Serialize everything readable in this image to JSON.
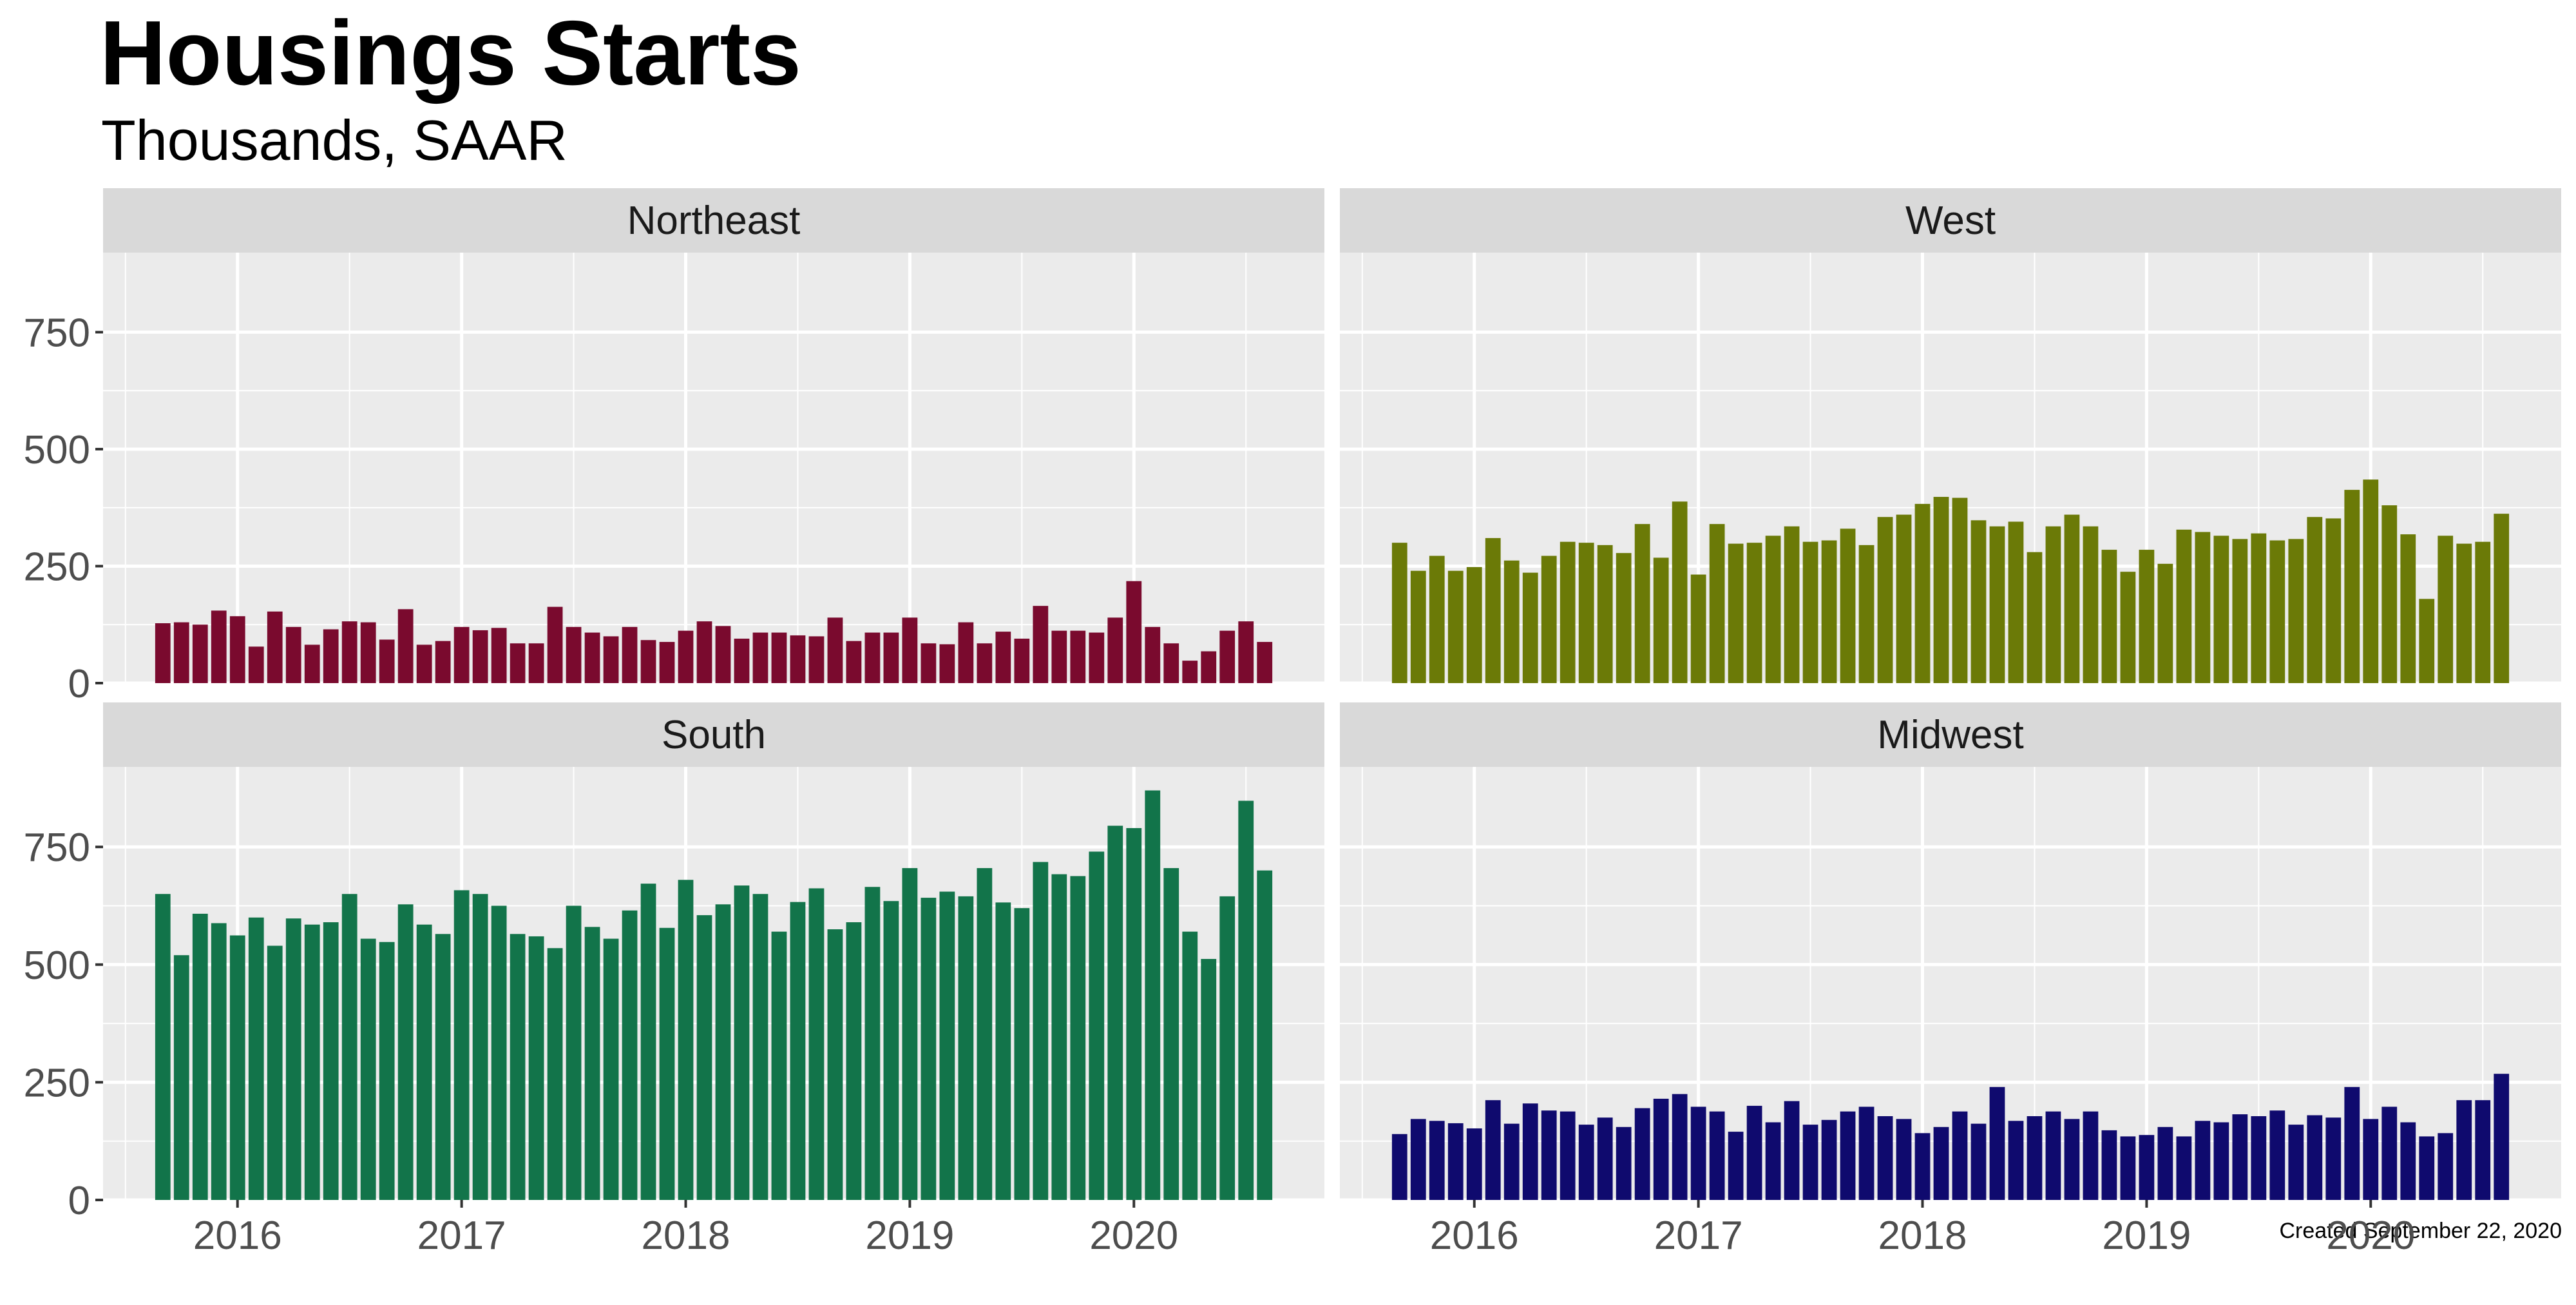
{
  "title": "Housings Starts",
  "subtitle": "Thousands, SAAR",
  "caption": "Created September 22, 2020",
  "chart_data": {
    "type": "bar",
    "layout": "facet-2x2",
    "x_start": "2015-09",
    "x_end": "2020-08",
    "x_ticks": [
      "2016",
      "2017",
      "2018",
      "2019",
      "2020"
    ],
    "y_ticks": [
      "0",
      "250",
      "500",
      "750"
    ],
    "ylim": [
      0,
      920
    ],
    "grid": true,
    "panels": [
      {
        "name": "Northeast",
        "color": "#7a0a2e",
        "values": [
          128,
          130,
          125,
          155,
          143,
          78,
          153,
          120,
          82,
          115,
          132,
          130,
          93,
          158,
          82,
          90,
          120,
          113,
          118,
          85,
          85,
          163,
          120,
          108,
          100,
          120,
          92,
          88,
          112,
          132,
          122,
          95,
          108,
          108,
          102,
          100,
          140,
          90,
          108,
          108,
          140,
          85,
          83,
          130,
          85,
          110,
          95,
          165,
          112,
          112,
          108,
          140,
          218,
          120,
          85,
          48,
          68,
          112,
          132,
          88
        ]
      },
      {
        "name": "West",
        "color": "#6b7a07",
        "values": [
          300,
          240,
          272,
          240,
          248,
          310,
          262,
          236,
          272,
          302,
          300,
          295,
          278,
          340,
          268,
          388,
          232,
          340,
          298,
          300,
          315,
          335,
          302,
          305,
          330,
          295,
          355,
          360,
          383,
          398,
          396,
          348,
          335,
          345,
          280,
          335,
          360,
          335,
          285,
          238,
          285,
          255,
          328,
          323,
          315,
          308,
          320,
          305,
          308,
          355,
          352,
          413,
          435,
          380,
          318,
          180,
          315,
          298,
          302,
          362
        ]
      },
      {
        "name": "South",
        "color": "#12744a",
        "values": [
          650,
          520,
          608,
          588,
          562,
          600,
          540,
          598,
          585,
          590,
          650,
          555,
          548,
          628,
          585,
          565,
          658,
          650,
          625,
          565,
          560,
          535,
          625,
          580,
          555,
          615,
          672,
          578,
          680,
          605,
          628,
          668,
          650,
          570,
          633,
          662,
          575,
          590,
          665,
          635,
          705,
          642,
          655,
          645,
          705,
          632,
          620,
          718,
          692,
          688,
          740,
          795,
          790,
          870,
          705,
          570,
          512,
          645,
          848,
          700
        ]
      },
      {
        "name": "Midwest",
        "color": "#0f0a6e",
        "values": [
          140,
          172,
          168,
          163,
          152,
          212,
          162,
          205,
          190,
          188,
          160,
          175,
          155,
          195,
          215,
          225,
          198,
          188,
          145,
          200,
          165,
          210,
          160,
          170,
          188,
          198,
          178,
          172,
          142,
          155,
          188,
          162,
          240,
          168,
          178,
          188,
          172,
          188,
          148,
          135,
          138,
          155,
          135,
          168,
          165,
          182,
          178,
          190,
          160,
          180,
          175,
          240,
          172,
          198,
          165,
          135,
          142,
          212,
          212,
          268
        ]
      }
    ]
  }
}
